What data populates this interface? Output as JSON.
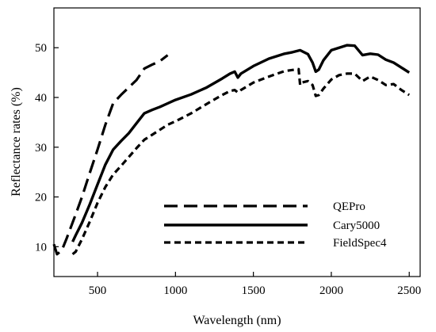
{
  "chart_data": {
    "type": "line",
    "title": "",
    "xlabel": "Wavelength (nm)",
    "ylabel": "Reflectance rates (%)",
    "xlim": [
      220,
      2570
    ],
    "ylim": [
      4,
      58
    ],
    "xticks": [
      500,
      1000,
      1500,
      2000,
      2500
    ],
    "yticks": [
      10,
      20,
      30,
      40,
      50
    ],
    "grid": false,
    "legend_position": "bottom-right",
    "series": [
      {
        "name": "QEPro",
        "dash": "long-dash",
        "color": "#000000",
        "x": [
          220,
          240,
          270,
          300,
          330,
          360,
          400,
          450,
          500,
          550,
          600,
          650,
          700,
          750,
          800,
          850,
          900,
          950
        ],
        "y": [
          10.5,
          8.5,
          9.2,
          11.5,
          14.0,
          16.5,
          20.0,
          24.8,
          29.5,
          34.5,
          38.8,
          40.5,
          42.0,
          43.5,
          45.8,
          46.6,
          47.3,
          48.5
        ]
      },
      {
        "name": "Cary5000",
        "dash": "solid",
        "color": "#000000",
        "x": [
          340,
          360,
          400,
          450,
          500,
          550,
          600,
          650,
          700,
          750,
          800,
          850,
          900,
          950,
          1000,
          1100,
          1200,
          1300,
          1350,
          1380,
          1400,
          1420,
          1500,
          1600,
          1700,
          1750,
          1800,
          1850,
          1880,
          1900,
          1920,
          1950,
          2000,
          2050,
          2100,
          2150,
          2200,
          2250,
          2300,
          2350,
          2400,
          2450,
          2500
        ],
        "y": [
          11.0,
          12.3,
          14.8,
          18.5,
          22.5,
          26.5,
          29.5,
          31.2,
          32.8,
          34.8,
          36.8,
          37.5,
          38.1,
          38.8,
          39.5,
          40.6,
          42.0,
          43.8,
          44.8,
          45.2,
          44.0,
          44.8,
          46.3,
          47.8,
          48.8,
          49.1,
          49.5,
          48.7,
          47.0,
          45.2,
          45.6,
          47.5,
          49.5,
          50.0,
          50.5,
          50.4,
          48.5,
          48.8,
          48.6,
          47.6,
          47.0,
          46.0,
          45.0
        ]
      },
      {
        "name": "FieldSpec4",
        "dash": "short-dash",
        "color": "#000000",
        "x": [
          340,
          360,
          400,
          450,
          500,
          550,
          600,
          650,
          700,
          750,
          800,
          850,
          900,
          950,
          1000,
          1100,
          1200,
          1300,
          1350,
          1380,
          1400,
          1420,
          1500,
          1600,
          1700,
          1790,
          1800,
          1810,
          1850,
          1880,
          1900,
          1920,
          1950,
          2000,
          2050,
          2100,
          2150,
          2200,
          2250,
          2300,
          2350,
          2400,
          2450,
          2500
        ],
        "y": [
          8.5,
          9.0,
          11.5,
          15.0,
          18.8,
          22.0,
          24.5,
          26.2,
          28.0,
          29.8,
          31.5,
          32.5,
          33.5,
          34.5,
          35.2,
          36.8,
          38.7,
          40.5,
          41.3,
          41.5,
          41.0,
          41.5,
          43.0,
          44.2,
          45.3,
          45.7,
          42.5,
          43.0,
          43.3,
          42.5,
          40.3,
          40.5,
          41.8,
          43.6,
          44.5,
          44.8,
          44.8,
          43.3,
          44.2,
          43.5,
          42.5,
          42.7,
          41.5,
          40.5
        ]
      }
    ]
  }
}
